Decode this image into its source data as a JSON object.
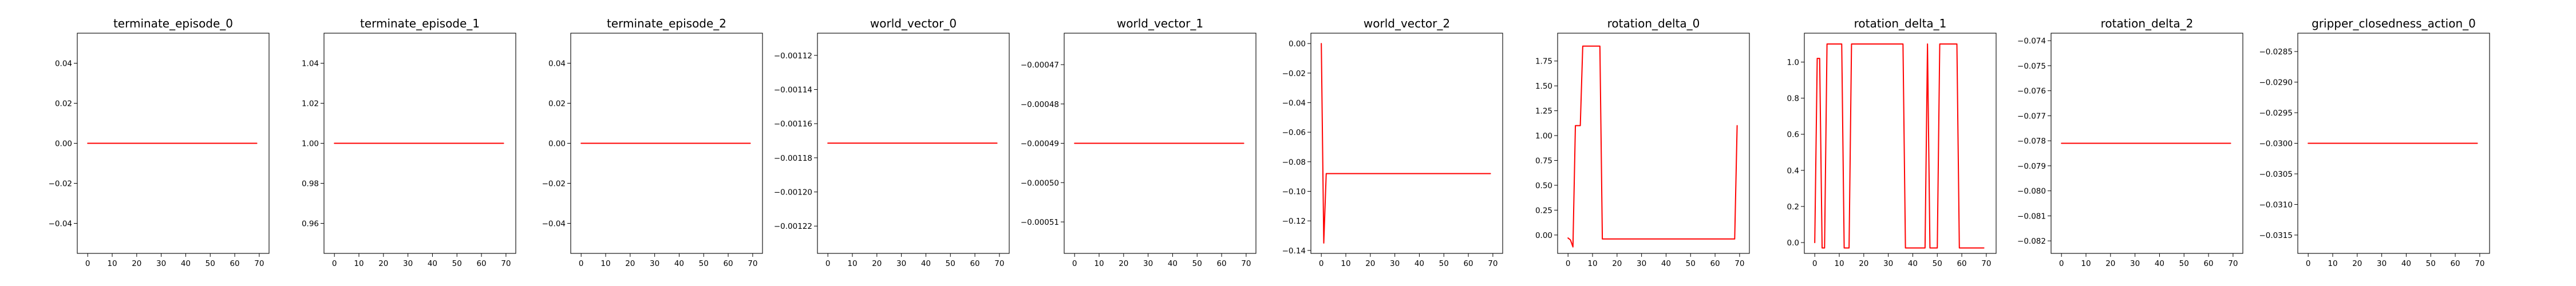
{
  "style": {
    "line_color": "#ff0000"
  },
  "chart_data": [
    {
      "type": "line",
      "title": "terminate_episode_0",
      "xlim": [
        -4.25,
        74
      ],
      "ylim": [
        -0.055,
        0.055
      ],
      "xticks": [
        0,
        10,
        20,
        30,
        40,
        50,
        60,
        70
      ],
      "xtick_labels": [
        "0",
        "10",
        "20",
        "30",
        "40",
        "50",
        "60",
        "70"
      ],
      "yticks": [
        -0.04,
        -0.02,
        0.0,
        0.02,
        0.04
      ],
      "ytick_labels": [
        "−0.04",
        "−0.02",
        "0.00",
        "0.02",
        "0.04"
      ],
      "series": [
        {
          "x": [
            0,
            69
          ],
          "y": [
            0.0,
            0.0
          ]
        }
      ]
    },
    {
      "type": "line",
      "title": "terminate_episode_1",
      "xlim": [
        -4.25,
        74
      ],
      "ylim": [
        0.945,
        1.055
      ],
      "xticks": [
        0,
        10,
        20,
        30,
        40,
        50,
        60,
        70
      ],
      "xtick_labels": [
        "0",
        "10",
        "20",
        "30",
        "40",
        "50",
        "60",
        "70"
      ],
      "yticks": [
        0.96,
        0.98,
        1.0,
        1.02,
        1.04
      ],
      "ytick_labels": [
        "0.96",
        "0.98",
        "1.00",
        "1.02",
        "1.04"
      ],
      "series": [
        {
          "x": [
            0,
            69
          ],
          "y": [
            1.0,
            1.0
          ]
        }
      ]
    },
    {
      "type": "line",
      "title": "terminate_episode_2",
      "xlim": [
        -4.25,
        74
      ],
      "ylim": [
        -0.055,
        0.055
      ],
      "xticks": [
        0,
        10,
        20,
        30,
        40,
        50,
        60,
        70
      ],
      "xtick_labels": [
        "0",
        "10",
        "20",
        "30",
        "40",
        "50",
        "60",
        "70"
      ],
      "yticks": [
        -0.04,
        -0.02,
        0.0,
        0.02,
        0.04
      ],
      "ytick_labels": [
        "−0.04",
        "−0.02",
        "0.00",
        "0.02",
        "0.04"
      ],
      "series": [
        {
          "x": [
            0,
            69
          ],
          "y": [
            0.0,
            0.0
          ]
        }
      ]
    },
    {
      "type": "line",
      "title": "world_vector_0",
      "xlim": [
        -4.25,
        74
      ],
      "ylim": [
        -0.001236,
        -0.001107
      ],
      "xticks": [
        0,
        10,
        20,
        30,
        40,
        50,
        60,
        70
      ],
      "xtick_labels": [
        "0",
        "10",
        "20",
        "30",
        "40",
        "50",
        "60",
        "70"
      ],
      "yticks": [
        -0.00112,
        -0.00114,
        -0.00116,
        -0.00118,
        -0.0012,
        -0.00122
      ],
      "ytick_labels": [
        "−0.00112",
        "−0.00114",
        "−0.00116",
        "−0.00118",
        "−0.00120",
        "−0.00122"
      ],
      "series": [
        {
          "x": [
            0,
            69
          ],
          "y": [
            -0.0011714,
            -0.0011714
          ]
        }
      ]
    },
    {
      "type": "line",
      "title": "world_vector_1",
      "xlim": [
        -4.25,
        74
      ],
      "ylim": [
        -0.000518,
        -0.000462
      ],
      "xticks": [
        0,
        10,
        20,
        30,
        40,
        50,
        60,
        70
      ],
      "xtick_labels": [
        "0",
        "10",
        "20",
        "30",
        "40",
        "50",
        "60",
        "70"
      ],
      "yticks": [
        -0.00047,
        -0.00048,
        -0.00049,
        -0.0005,
        -0.00051
      ],
      "ytick_labels": [
        "−0.00047",
        "−0.00048",
        "−0.00049",
        "−0.00050",
        "−0.00051"
      ],
      "series": [
        {
          "x": [
            0,
            69
          ],
          "y": [
            -0.00049,
            -0.00049
          ]
        }
      ]
    },
    {
      "type": "line",
      "title": "world_vector_2",
      "xlim": [
        -4.25,
        74
      ],
      "ylim": [
        -0.142,
        0.007
      ],
      "xticks": [
        0,
        10,
        20,
        30,
        40,
        50,
        60,
        70
      ],
      "xtick_labels": [
        "0",
        "10",
        "20",
        "30",
        "40",
        "50",
        "60",
        "70"
      ],
      "yticks": [
        0.0,
        -0.02,
        -0.04,
        -0.06,
        -0.08,
        -0.1,
        -0.12,
        -0.14
      ],
      "ytick_labels": [
        "0.00",
        "−0.02",
        "−0.04",
        "−0.06",
        "−0.08",
        "−0.10",
        "−0.12",
        "−0.14"
      ],
      "series": [
        {
          "x": [
            0,
            1,
            2,
            69
          ],
          "y": [
            0.0,
            -0.135,
            -0.088,
            -0.088
          ]
        }
      ]
    },
    {
      "type": "line",
      "title": "rotation_delta_0",
      "xlim": [
        -4.25,
        74
      ],
      "ylim": [
        -0.185,
        2.03
      ],
      "xticks": [
        0,
        10,
        20,
        30,
        40,
        50,
        60,
        70
      ],
      "xtick_labels": [
        "0",
        "10",
        "20",
        "30",
        "40",
        "50",
        "60",
        "70"
      ],
      "yticks": [
        0.0,
        0.25,
        0.5,
        0.75,
        1.0,
        1.25,
        1.5,
        1.75
      ],
      "ytick_labels": [
        "0.00",
        "0.25",
        "0.50",
        "0.75",
        "1.00",
        "1.25",
        "1.50",
        "1.75"
      ],
      "series": [
        {
          "x": [
            0,
            1,
            2,
            3,
            4,
            5,
            6,
            7,
            8,
            9,
            10,
            11,
            12,
            13,
            14,
            15,
            16,
            17,
            18,
            19,
            20,
            21,
            22,
            23,
            24,
            25,
            26,
            27,
            28,
            29,
            30,
            31,
            32,
            33,
            34,
            35,
            36,
            37,
            38,
            39,
            40,
            41,
            42,
            43,
            44,
            45,
            46,
            47,
            48,
            49,
            50,
            51,
            52,
            53,
            54,
            55,
            56,
            57,
            58,
            59,
            60,
            61,
            62,
            63,
            64,
            65,
            66,
            67,
            68,
            69
          ],
          "y": [
            -0.03,
            -0.05,
            -0.12,
            1.1,
            1.1,
            1.1,
            1.9,
            1.9,
            1.9,
            1.9,
            1.9,
            1.9,
            1.9,
            1.9,
            -0.04,
            -0.04,
            -0.04,
            -0.04,
            -0.04,
            -0.04,
            -0.04,
            -0.04,
            -0.04,
            -0.04,
            -0.04,
            -0.04,
            -0.04,
            -0.04,
            -0.04,
            -0.04,
            -0.04,
            -0.04,
            -0.04,
            -0.04,
            -0.04,
            -0.04,
            -0.04,
            -0.04,
            -0.04,
            -0.04,
            -0.04,
            -0.04,
            -0.04,
            -0.04,
            -0.04,
            -0.04,
            -0.04,
            -0.04,
            -0.04,
            -0.04,
            -0.04,
            -0.04,
            -0.04,
            -0.04,
            -0.04,
            -0.04,
            -0.04,
            -0.04,
            -0.04,
            -0.04,
            -0.04,
            -0.04,
            -0.04,
            -0.04,
            -0.04,
            -0.04,
            -0.04,
            -0.04,
            -0.04,
            1.1
          ]
        }
      ]
    },
    {
      "type": "line",
      "title": "rotation_delta_1",
      "xlim": [
        -4.25,
        74
      ],
      "ylim": [
        -0.06,
        1.16
      ],
      "xticks": [
        0,
        10,
        20,
        30,
        40,
        50,
        60,
        70
      ],
      "xtick_labels": [
        "0",
        "10",
        "20",
        "30",
        "40",
        "50",
        "60",
        "70"
      ],
      "yticks": [
        0.0,
        0.2,
        0.4,
        0.6,
        0.8,
        1.0
      ],
      "ytick_labels": [
        "0.0",
        "0.2",
        "0.4",
        "0.6",
        "0.8",
        "1.0"
      ],
      "series": [
        {
          "x": [
            0,
            1,
            2,
            3,
            4,
            5,
            6,
            7,
            8,
            9,
            10,
            11,
            12,
            13,
            14,
            15,
            16,
            17,
            18,
            19,
            20,
            21,
            22,
            23,
            24,
            25,
            26,
            27,
            28,
            29,
            30,
            31,
            32,
            33,
            34,
            35,
            36,
            37,
            38,
            39,
            40,
            41,
            42,
            43,
            44,
            45,
            46,
            47,
            48,
            49,
            50,
            51,
            52,
            53,
            54,
            55,
            56,
            57,
            58,
            59,
            60,
            61,
            62,
            63,
            64,
            65,
            66,
            67,
            68,
            69
          ],
          "y": [
            0.0,
            1.02,
            1.02,
            -0.03,
            -0.03,
            1.1,
            1.1,
            1.1,
            1.1,
            1.1,
            1.1,
            1.1,
            -0.03,
            -0.03,
            -0.03,
            1.1,
            1.1,
            1.1,
            1.1,
            1.1,
            1.1,
            1.1,
            1.1,
            1.1,
            1.1,
            1.1,
            1.1,
            1.1,
            1.1,
            1.1,
            1.1,
            1.1,
            1.1,
            1.1,
            1.1,
            1.1,
            1.1,
            -0.03,
            -0.03,
            -0.03,
            -0.03,
            -0.03,
            -0.03,
            -0.03,
            -0.03,
            -0.03,
            1.1,
            -0.03,
            -0.03,
            -0.03,
            -0.03,
            1.1,
            1.1,
            1.1,
            1.1,
            1.1,
            1.1,
            1.1,
            1.1,
            -0.03,
            -0.03,
            -0.03,
            -0.03,
            -0.03,
            -0.03,
            -0.03,
            -0.03,
            -0.03,
            -0.03,
            -0.03
          ]
        }
      ]
    },
    {
      "type": "line",
      "title": "rotation_delta_2",
      "xlim": [
        -4.25,
        74
      ],
      "ylim": [
        -0.0825,
        -0.0737
      ],
      "xticks": [
        0,
        10,
        20,
        30,
        40,
        50,
        60,
        70
      ],
      "xtick_labels": [
        "0",
        "10",
        "20",
        "30",
        "40",
        "50",
        "60",
        "70"
      ],
      "yticks": [
        -0.074,
        -0.075,
        -0.076,
        -0.077,
        -0.078,
        -0.079,
        -0.08,
        -0.081,
        -0.082
      ],
      "ytick_labels": [
        "−0.074",
        "−0.075",
        "−0.076",
        "−0.077",
        "−0.078",
        "−0.079",
        "−0.080",
        "−0.081",
        "−0.082"
      ],
      "series": [
        {
          "x": [
            0,
            69
          ],
          "y": [
            -0.0781,
            -0.0781
          ]
        }
      ]
    },
    {
      "type": "line",
      "title": "gripper_closedness_action_0",
      "xlim": [
        -4.25,
        74
      ],
      "ylim": [
        -0.0318,
        -0.0282
      ],
      "xticks": [
        0,
        10,
        20,
        30,
        40,
        50,
        60,
        70
      ],
      "xtick_labels": [
        "0",
        "10",
        "20",
        "30",
        "40",
        "50",
        "60",
        "70"
      ],
      "yticks": [
        -0.0285,
        -0.029,
        -0.0295,
        -0.03,
        -0.0305,
        -0.031,
        -0.0315
      ],
      "ytick_labels": [
        "−0.0285",
        "−0.0290",
        "−0.0295",
        "−0.0300",
        "−0.0305",
        "−0.0310",
        "−0.0315"
      ],
      "series": [
        {
          "x": [
            0,
            69
          ],
          "y": [
            -0.03,
            -0.03
          ]
        }
      ]
    }
  ]
}
